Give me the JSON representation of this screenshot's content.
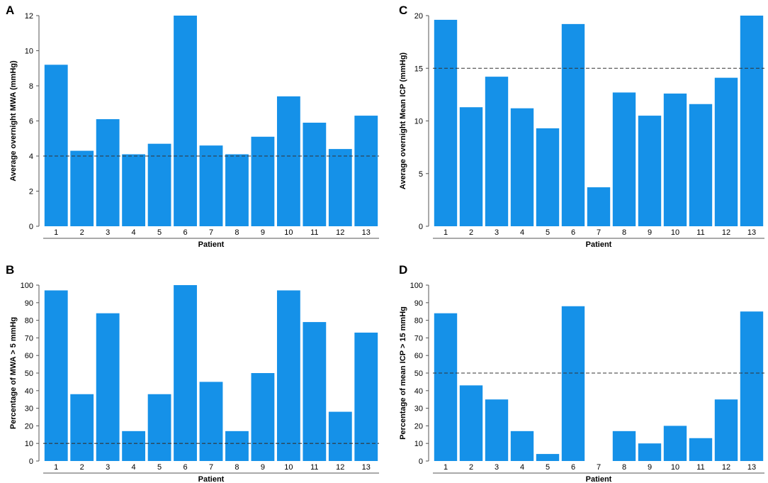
{
  "figure": {
    "bar_color": "#1591e8",
    "axis_color": "#555555",
    "threshold_color": "#333333"
  },
  "chart_data": [
    {
      "panel": "A",
      "type": "bar",
      "categories": [
        "1",
        "2",
        "3",
        "4",
        "5",
        "6",
        "7",
        "8",
        "9",
        "10",
        "11",
        "12",
        "13"
      ],
      "values": [
        9.2,
        4.3,
        6.1,
        4.1,
        4.7,
        12.0,
        4.6,
        4.1,
        5.1,
        7.4,
        5.9,
        4.4,
        6.3
      ],
      "xlabel": "Patient",
      "ylabel": "Average overnight MWA (mmHg)",
      "ylim": [
        0,
        12
      ],
      "yticks": [
        0,
        2,
        4,
        6,
        8,
        10,
        12
      ],
      "threshold": 4,
      "grid": false
    },
    {
      "panel": "B",
      "type": "bar",
      "categories": [
        "1",
        "2",
        "3",
        "4",
        "5",
        "6",
        "7",
        "8",
        "9",
        "10",
        "11",
        "12",
        "13"
      ],
      "values": [
        97,
        38,
        84,
        17,
        38,
        100,
        45,
        17,
        50,
        97,
        79,
        28,
        73
      ],
      "xlabel": "Patient",
      "ylabel": "Percentage of MWA > 5 mmHg",
      "ylim": [
        0,
        100
      ],
      "yticks": [
        0,
        10,
        20,
        30,
        40,
        50,
        60,
        70,
        80,
        90,
        100
      ],
      "threshold": 10,
      "grid": false
    },
    {
      "panel": "C",
      "type": "bar",
      "categories": [
        "1",
        "2",
        "3",
        "4",
        "5",
        "6",
        "7",
        "8",
        "9",
        "10",
        "11",
        "12",
        "13"
      ],
      "values": [
        19.6,
        11.3,
        14.2,
        11.2,
        9.3,
        19.2,
        3.7,
        12.7,
        10.5,
        12.6,
        11.6,
        14.1,
        20.0
      ],
      "xlabel": "Patient",
      "ylabel": "Average overnight Mean ICP (mmHg)",
      "ylim": [
        0,
        20
      ],
      "yticks": [
        0,
        5,
        10,
        15,
        20
      ],
      "threshold": 15,
      "grid": false
    },
    {
      "panel": "D",
      "type": "bar",
      "categories": [
        "1",
        "2",
        "3",
        "4",
        "5",
        "6",
        "7",
        "8",
        "9",
        "10",
        "11",
        "12",
        "13"
      ],
      "values": [
        84,
        43,
        35,
        17,
        4,
        88,
        0,
        17,
        10,
        20,
        13,
        35,
        85
      ],
      "xlabel": "Patient",
      "ylabel": "Percentage of mean ICP > 15 mmHg",
      "ylim": [
        0,
        100
      ],
      "yticks": [
        0,
        10,
        20,
        30,
        40,
        50,
        60,
        70,
        80,
        90,
        100
      ],
      "threshold": 50,
      "grid": false
    }
  ]
}
